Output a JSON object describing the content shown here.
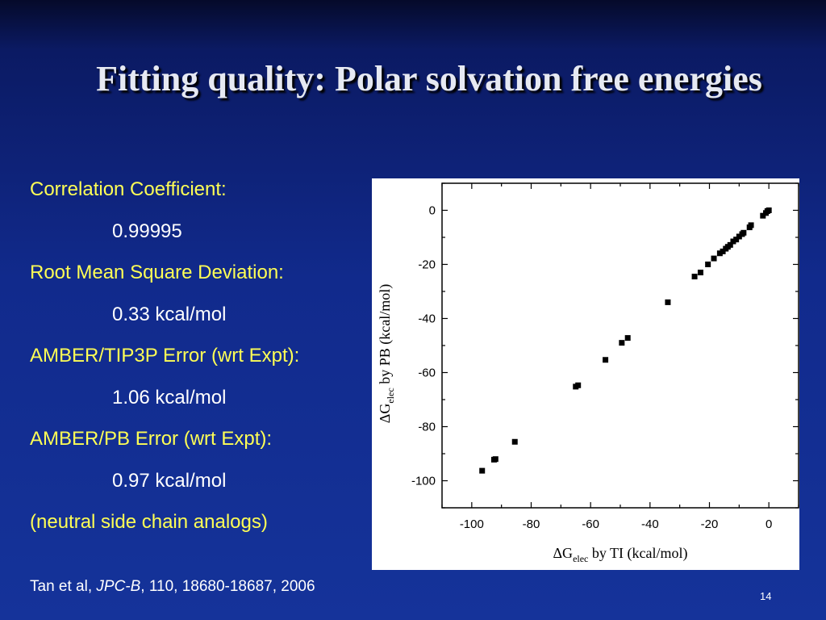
{
  "slide": {
    "title": "Fitting quality: Polar solvation free energies",
    "slide_number": "14"
  },
  "stats": [
    {
      "label": "Correlation Coefficient:",
      "value": "0.99995"
    },
    {
      "label": "Root Mean Square Deviation:",
      "value": "0.33 kcal/mol"
    },
    {
      "label": "AMBER/TIP3P Error (wrt Expt):",
      "value": "1.06 kcal/mol"
    },
    {
      "label": "AMBER/PB Error (wrt Expt):",
      "value": "0.97 kcal/mol"
    },
    {
      "label": "(neutral side chain analogs)",
      "value": ""
    }
  ],
  "citation": {
    "authors": "Tan et al, ",
    "journal": "JPC-B",
    "details": ", 110, 18680-18687, 2006"
  },
  "chart_data": {
    "type": "scatter",
    "xlabel": {
      "prefix": "ΔG",
      "sub": "elec",
      "suffix": " by TI (kcal/mol)"
    },
    "ylabel": {
      "prefix": "ΔG",
      "sub": "elec",
      "suffix": " by PB (kcal/mol)"
    },
    "xlim": [
      -110,
      10
    ],
    "ylim": [
      -110,
      10
    ],
    "xticks": [
      -100,
      -80,
      -60,
      -40,
      -20,
      0
    ],
    "yticks": [
      0,
      -20,
      -40,
      -60,
      -80,
      -100
    ],
    "grid": false,
    "marker": "square",
    "color": "#000000",
    "points": [
      [
        -96.5,
        -96.3
      ],
      [
        -92.5,
        -92.2
      ],
      [
        -92.0,
        -92.0
      ],
      [
        -85.5,
        -85.6
      ],
      [
        -65.0,
        -65.2
      ],
      [
        -64.2,
        -64.7
      ],
      [
        -55.0,
        -55.3
      ],
      [
        -49.5,
        -49.0
      ],
      [
        -47.5,
        -47.2
      ],
      [
        -34.0,
        -34.0
      ],
      [
        -25.0,
        -24.5
      ],
      [
        -23.0,
        -23.0
      ],
      [
        -20.5,
        -20.0
      ],
      [
        -18.5,
        -17.8
      ],
      [
        -16.5,
        -15.9
      ],
      [
        -15.5,
        -15.2
      ],
      [
        -14.5,
        -14.2
      ],
      [
        -13.8,
        -13.5
      ],
      [
        -13.0,
        -12.8
      ],
      [
        -12.0,
        -11.5
      ],
      [
        -11.0,
        -10.8
      ],
      [
        -10.0,
        -9.7
      ],
      [
        -9.0,
        -8.8
      ],
      [
        -8.5,
        -8.3
      ],
      [
        -6.5,
        -6.3
      ],
      [
        -6.0,
        -5.5
      ],
      [
        -2.0,
        -2.0
      ],
      [
        -1.0,
        -1.0
      ],
      [
        -0.5,
        -0.3
      ],
      [
        0.0,
        0.0
      ]
    ]
  }
}
